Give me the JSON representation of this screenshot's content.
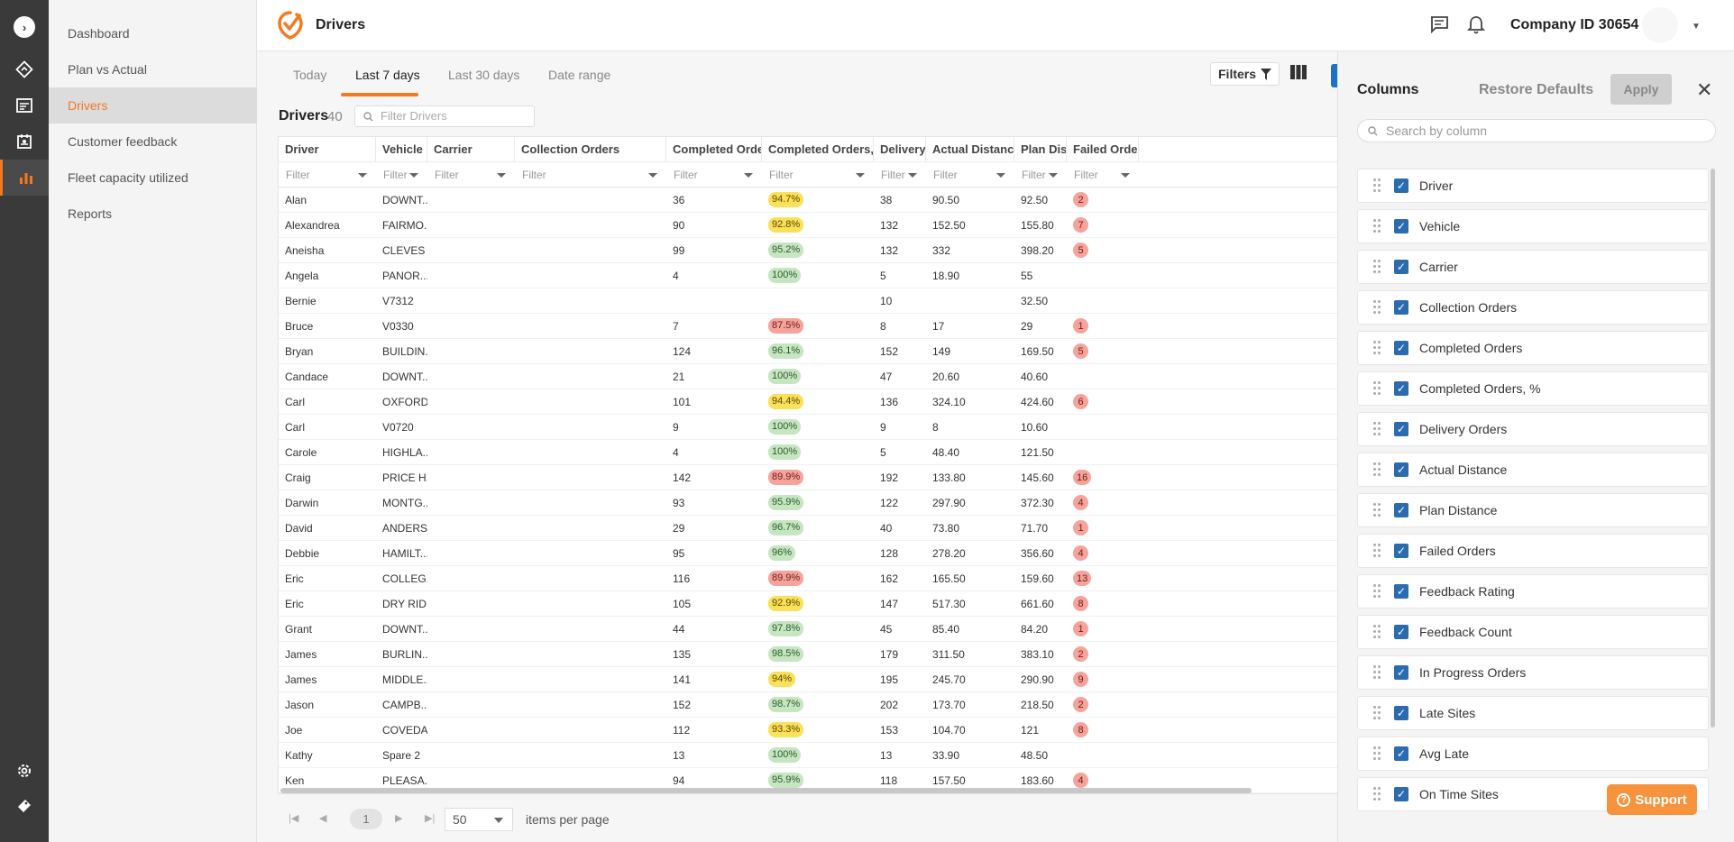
{
  "header": {
    "title": "Drivers",
    "company": "Company ID 30654",
    "icons": [
      "message-icon",
      "bell-icon",
      "chevron-down-icon"
    ],
    "brand_color": "#f47920"
  },
  "rail": {
    "icons": [
      "expand-icon",
      "routes-icon",
      "schedule-icon",
      "calendar-icon",
      "reports-icon",
      "settings-icon",
      "tag-icon"
    ]
  },
  "nav": {
    "items": [
      {
        "label": "Dashboard",
        "active": false
      },
      {
        "label": "Plan vs Actual",
        "active": false
      },
      {
        "label": "Drivers",
        "active": true
      },
      {
        "label": "Customer feedback",
        "active": false
      },
      {
        "label": "Fleet capacity utilized",
        "active": false
      },
      {
        "label": "Reports",
        "active": false
      }
    ]
  },
  "tabs": [
    {
      "label": "Today",
      "active": false
    },
    {
      "label": "Last 7 days",
      "active": true
    },
    {
      "label": "Last 30 days",
      "active": false
    },
    {
      "label": "Date range",
      "active": false
    }
  ],
  "toolbar": {
    "filters_label": "Filters"
  },
  "drivers": {
    "title": "Drivers",
    "count": "40",
    "filter_placeholder": "Filter Drivers"
  },
  "grid": {
    "columns": [
      "Driver",
      "Vehicle",
      "Carrier",
      "Collection Orders",
      "Completed Orders",
      "Completed Orders, %",
      "Delivery...",
      "Actual Distance",
      "Plan Dis...",
      "Failed Orders"
    ],
    "filter_placeholder": "Filter",
    "rows": [
      {
        "driver": "Alan",
        "vehicle": "DOWNT...",
        "carrier": "",
        "collection": "",
        "completed": "36",
        "pct": "94.7%",
        "level": "y",
        "delivery": "38",
        "actual": "90.50",
        "plan": "92.50",
        "failed": "2"
      },
      {
        "driver": "Alexandrea",
        "vehicle": "FAIRMO...",
        "carrier": "",
        "collection": "",
        "completed": "90",
        "pct": "92.8%",
        "level": "y",
        "delivery": "132",
        "actual": "152.50",
        "plan": "155.80",
        "failed": "7"
      },
      {
        "driver": "Aneisha",
        "vehicle": "CLEVES",
        "carrier": "",
        "collection": "",
        "completed": "99",
        "pct": "95.2%",
        "level": "g",
        "delivery": "132",
        "actual": "332",
        "plan": "398.20",
        "failed": "5"
      },
      {
        "driver": "Angela",
        "vehicle": "PANOR...",
        "carrier": "",
        "collection": "",
        "completed": "4",
        "pct": "100%",
        "level": "g",
        "delivery": "5",
        "actual": "18.90",
        "plan": "55",
        "failed": ""
      },
      {
        "driver": "Bernie",
        "vehicle": "V7312",
        "carrier": "",
        "collection": "",
        "completed": "",
        "pct": "",
        "level": "",
        "delivery": "10",
        "actual": "",
        "plan": "32.50",
        "failed": ""
      },
      {
        "driver": "Bruce",
        "vehicle": "V0330",
        "carrier": "",
        "collection": "",
        "completed": "7",
        "pct": "87.5%",
        "level": "r",
        "delivery": "8",
        "actual": "17",
        "plan": "29",
        "failed": "1"
      },
      {
        "driver": "Bryan",
        "vehicle": "BUILDIN...",
        "carrier": "",
        "collection": "",
        "completed": "124",
        "pct": "96.1%",
        "level": "g",
        "delivery": "152",
        "actual": "149",
        "plan": "169.50",
        "failed": "5"
      },
      {
        "driver": "Candace",
        "vehicle": "DOWNT...",
        "carrier": "",
        "collection": "",
        "completed": "21",
        "pct": "100%",
        "level": "g",
        "delivery": "47",
        "actual": "20.60",
        "plan": "40.60",
        "failed": ""
      },
      {
        "driver": "Carl",
        "vehicle": "OXFORD",
        "carrier": "",
        "collection": "",
        "completed": "101",
        "pct": "94.4%",
        "level": "y",
        "delivery": "136",
        "actual": "324.10",
        "plan": "424.60",
        "failed": "6"
      },
      {
        "driver": "Carl",
        "vehicle": "V0720",
        "carrier": "",
        "collection": "",
        "completed": "9",
        "pct": "100%",
        "level": "g",
        "delivery": "9",
        "actual": "8",
        "plan": "10.60",
        "failed": ""
      },
      {
        "driver": "Carole",
        "vehicle": "HIGHLA...",
        "carrier": "",
        "collection": "",
        "completed": "4",
        "pct": "100%",
        "level": "g",
        "delivery": "5",
        "actual": "48.40",
        "plan": "121.50",
        "failed": ""
      },
      {
        "driver": "Craig",
        "vehicle": "PRICE H...",
        "carrier": "",
        "collection": "",
        "completed": "142",
        "pct": "89.9%",
        "level": "r",
        "delivery": "192",
        "actual": "133.80",
        "plan": "145.60",
        "failed": "16"
      },
      {
        "driver": "Darwin",
        "vehicle": "MONTG...",
        "carrier": "",
        "collection": "",
        "completed": "93",
        "pct": "95.9%",
        "level": "g",
        "delivery": "122",
        "actual": "297.90",
        "plan": "372.30",
        "failed": "4"
      },
      {
        "driver": "David",
        "vehicle": "ANDERS...",
        "carrier": "",
        "collection": "",
        "completed": "29",
        "pct": "96.7%",
        "level": "g",
        "delivery": "40",
        "actual": "73.80",
        "plan": "71.70",
        "failed": "1"
      },
      {
        "driver": "Debbie",
        "vehicle": "HAMILT...",
        "carrier": "",
        "collection": "",
        "completed": "95",
        "pct": "96%",
        "level": "g",
        "delivery": "128",
        "actual": "278.20",
        "plan": "356.60",
        "failed": "4"
      },
      {
        "driver": "Eric",
        "vehicle": "COLLEG...",
        "carrier": "",
        "collection": "",
        "completed": "116",
        "pct": "89.9%",
        "level": "r",
        "delivery": "162",
        "actual": "165.50",
        "plan": "159.60",
        "failed": "13"
      },
      {
        "driver": "Eric",
        "vehicle": "DRY RID...",
        "carrier": "",
        "collection": "",
        "completed": "105",
        "pct": "92.9%",
        "level": "y",
        "delivery": "147",
        "actual": "517.30",
        "plan": "661.60",
        "failed": "8"
      },
      {
        "driver": "Grant",
        "vehicle": "DOWNT...",
        "carrier": "",
        "collection": "",
        "completed": "44",
        "pct": "97.8%",
        "level": "g",
        "delivery": "45",
        "actual": "85.40",
        "plan": "84.20",
        "failed": "1"
      },
      {
        "driver": "James",
        "vehicle": "BURLIN...",
        "carrier": "",
        "collection": "",
        "completed": "135",
        "pct": "98.5%",
        "level": "g",
        "delivery": "179",
        "actual": "311.50",
        "plan": "383.10",
        "failed": "2"
      },
      {
        "driver": "James",
        "vehicle": "MIDDLE...",
        "carrier": "",
        "collection": "",
        "completed": "141",
        "pct": "94%",
        "level": "y",
        "delivery": "195",
        "actual": "245.70",
        "plan": "290.90",
        "failed": "9"
      },
      {
        "driver": "Jason",
        "vehicle": "CAMPB...",
        "carrier": "",
        "collection": "",
        "completed": "152",
        "pct": "98.7%",
        "level": "g",
        "delivery": "202",
        "actual": "173.70",
        "plan": "218.50",
        "failed": "2"
      },
      {
        "driver": "Joe",
        "vehicle": "COVEDA...",
        "carrier": "",
        "collection": "",
        "completed": "112",
        "pct": "93.3%",
        "level": "y",
        "delivery": "153",
        "actual": "104.70",
        "plan": "121",
        "failed": "8"
      },
      {
        "driver": "Kathy",
        "vehicle": "Spare 2",
        "carrier": "",
        "collection": "",
        "completed": "13",
        "pct": "100%",
        "level": "g",
        "delivery": "13",
        "actual": "33.90",
        "plan": "48.50",
        "failed": ""
      },
      {
        "driver": "Ken",
        "vehicle": "PLEASA...",
        "carrier": "",
        "collection": "",
        "completed": "94",
        "pct": "95.9%",
        "level": "g",
        "delivery": "118",
        "actual": "157.50",
        "plan": "183.60",
        "failed": "4"
      }
    ]
  },
  "pager": {
    "page": "1",
    "page_size": "50",
    "label": "items per page"
  },
  "panel": {
    "title": "Columns",
    "restore_label": "Restore Defaults",
    "apply_label": "Apply",
    "search_placeholder": "Search by column",
    "columns": [
      "Driver",
      "Vehicle",
      "Carrier",
      "Collection Orders",
      "Completed Orders",
      "Completed Orders, %",
      "Delivery Orders",
      "Actual Distance",
      "Plan Distance",
      "Failed Orders",
      "Feedback Rating",
      "Feedback Count",
      "In Progress Orders",
      "Late Sites",
      "Avg Late",
      "On Time Sites"
    ]
  },
  "support": {
    "label": "Support"
  }
}
